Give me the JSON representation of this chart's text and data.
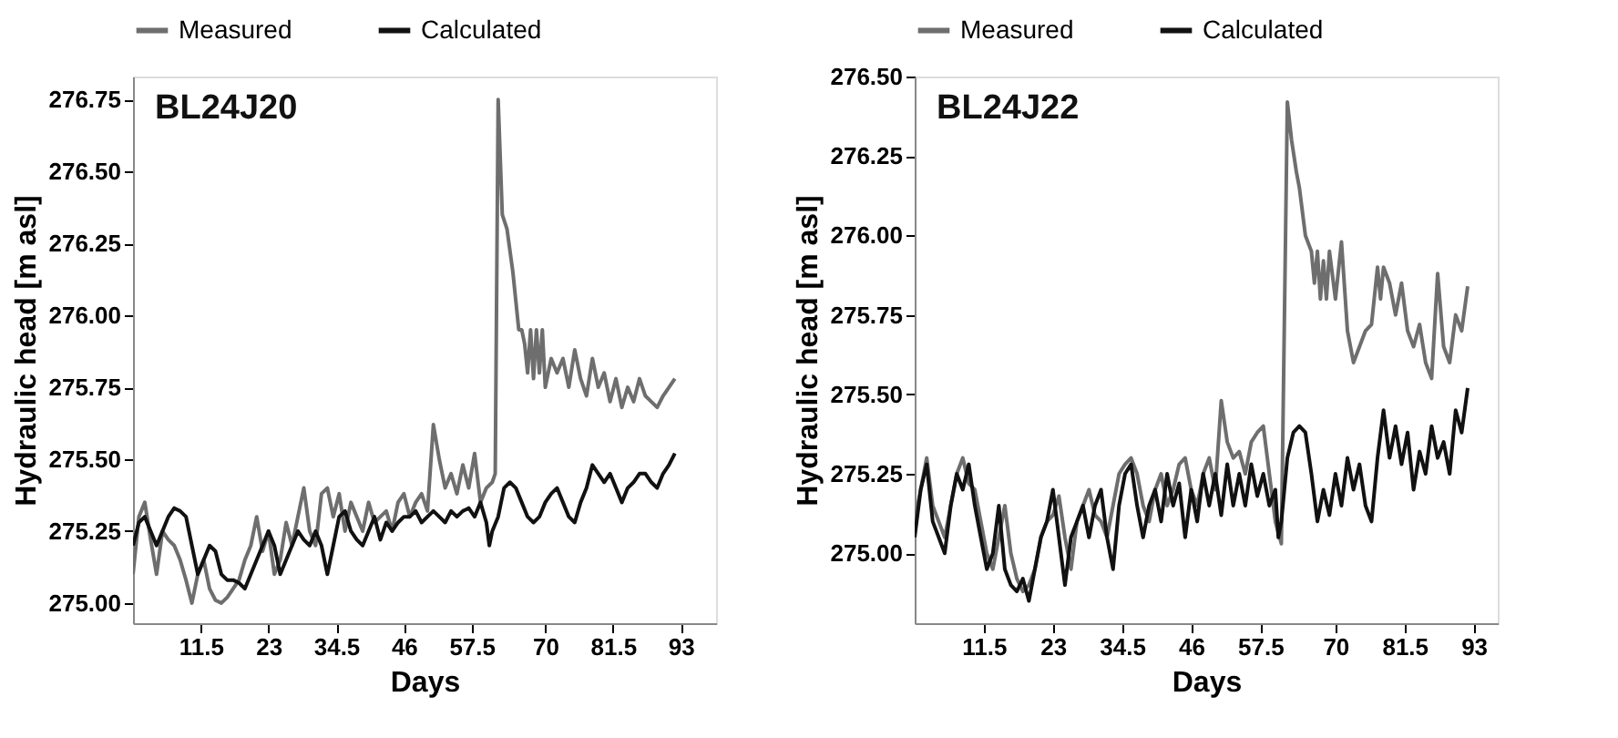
{
  "chart_data": [
    {
      "type": "line",
      "title": "BL24J20",
      "xlabel": "Days",
      "ylabel": "Hydraulic head [m asl]",
      "xlim": [
        0,
        99
      ],
      "ylim": [
        274.93,
        276.83
      ],
      "xticks": [
        11.5,
        23,
        34.5,
        46,
        57.5,
        70,
        81.5,
        93
      ],
      "yticks": [
        {
          "value": 275.0,
          "label": "275.00"
        },
        275.25,
        {
          "value": 275.5,
          "label": "275.50"
        },
        275.75,
        {
          "value": 276.0,
          "label": "276.00"
        },
        276.25,
        {
          "value": 276.5,
          "label": "276.50"
        },
        276.75
      ],
      "legend": "top",
      "grid": false,
      "series": [
        {
          "name": "Measured",
          "color": "#6e6e6e",
          "x": [
            0,
            1,
            2,
            3,
            4,
            5,
            6,
            7,
            8,
            9,
            10,
            11,
            12,
            13,
            14,
            15,
            16,
            17,
            18,
            19,
            20,
            21,
            22,
            23,
            24,
            25,
            26,
            27,
            28,
            29,
            30,
            31,
            32,
            33,
            34,
            35,
            36,
            37,
            38,
            39,
            40,
            41,
            42,
            43,
            44,
            45,
            46,
            47,
            48,
            49,
            50,
            51,
            52,
            53,
            54,
            55,
            56,
            57,
            58,
            59,
            60,
            61,
            61.5,
            62,
            62.7,
            63.5,
            64.5,
            65.5,
            66,
            66.5,
            67,
            67.5,
            68,
            68.5,
            69,
            69.5,
            70,
            71,
            72,
            73,
            74,
            75,
            76,
            77,
            78,
            79,
            80,
            81,
            82,
            83,
            84,
            85,
            86,
            87,
            88,
            89,
            90,
            91,
            92
          ],
          "values": [
            275.1,
            275.3,
            275.35,
            275.22,
            275.1,
            275.25,
            275.22,
            275.2,
            275.15,
            275.08,
            275.0,
            275.1,
            275.15,
            275.05,
            275.01,
            275.0,
            275.02,
            275.05,
            275.08,
            275.15,
            275.2,
            275.3,
            275.18,
            275.25,
            275.1,
            275.15,
            275.28,
            275.2,
            275.3,
            275.4,
            275.25,
            275.2,
            275.38,
            275.4,
            275.3,
            275.38,
            275.25,
            275.35,
            275.3,
            275.25,
            275.35,
            275.28,
            275.3,
            275.32,
            275.25,
            275.35,
            275.38,
            275.3,
            275.35,
            275.38,
            275.32,
            275.62,
            275.5,
            275.4,
            275.45,
            275.38,
            275.48,
            275.4,
            275.52,
            275.35,
            275.4,
            275.42,
            275.45,
            276.75,
            276.35,
            276.3,
            276.15,
            275.95,
            275.95,
            275.9,
            275.8,
            275.95,
            275.78,
            275.95,
            275.8,
            275.95,
            275.75,
            275.85,
            275.8,
            275.85,
            275.75,
            275.88,
            275.78,
            275.72,
            275.85,
            275.75,
            275.8,
            275.7,
            275.78,
            275.68,
            275.75,
            275.7,
            275.78,
            275.72,
            275.7,
            275.68,
            275.72,
            275.75,
            275.78
          ]
        },
        {
          "name": "Calculated",
          "color": "#111111",
          "x": [
            0,
            1,
            2,
            3,
            4,
            5,
            6,
            7,
            8,
            9,
            10,
            11,
            12,
            13,
            14,
            15,
            16,
            17,
            18,
            19,
            20,
            21,
            22,
            23,
            24,
            25,
            26,
            27,
            28,
            29,
            30,
            31,
            32,
            33,
            34,
            35,
            36,
            37,
            38,
            39,
            40,
            41,
            42,
            43,
            44,
            45,
            46,
            47,
            48,
            49,
            50,
            51,
            52,
            53,
            54,
            55,
            56,
            57,
            58,
            59,
            60,
            60.5,
            61,
            62,
            63,
            64,
            65,
            66,
            67,
            68,
            69,
            70,
            71,
            72,
            73,
            74,
            75,
            76,
            77,
            78,
            79,
            80,
            81,
            82,
            83,
            84,
            85,
            86,
            87,
            88,
            89,
            90,
            91,
            92
          ],
          "values": [
            275.2,
            275.28,
            275.3,
            275.25,
            275.2,
            275.25,
            275.3,
            275.33,
            275.32,
            275.3,
            275.2,
            275.1,
            275.15,
            275.2,
            275.18,
            275.1,
            275.08,
            275.08,
            275.07,
            275.05,
            275.1,
            275.15,
            275.2,
            275.25,
            275.2,
            275.1,
            275.15,
            275.2,
            275.25,
            275.22,
            275.2,
            275.25,
            275.2,
            275.1,
            275.2,
            275.3,
            275.32,
            275.25,
            275.22,
            275.2,
            275.25,
            275.3,
            275.22,
            275.28,
            275.25,
            275.28,
            275.3,
            275.3,
            275.32,
            275.28,
            275.3,
            275.32,
            275.3,
            275.28,
            275.32,
            275.3,
            275.32,
            275.33,
            275.3,
            275.35,
            275.28,
            275.2,
            275.25,
            275.3,
            275.4,
            275.42,
            275.4,
            275.35,
            275.3,
            275.28,
            275.3,
            275.35,
            275.38,
            275.4,
            275.35,
            275.3,
            275.28,
            275.35,
            275.4,
            275.48,
            275.45,
            275.42,
            275.45,
            275.4,
            275.35,
            275.4,
            275.42,
            275.45,
            275.45,
            275.42,
            275.4,
            275.45,
            275.48,
            275.52
          ]
        }
      ]
    },
    {
      "type": "line",
      "title": "BL24J22",
      "xlabel": "Days",
      "ylabel": "Hydraulic head [m asl]",
      "xlim": [
        0,
        97
      ],
      "ylim": [
        274.78,
        276.5
      ],
      "xticks": [
        11.5,
        23,
        34.5,
        46,
        57.5,
        70,
        81.5,
        93
      ],
      "yticks": [
        {
          "value": 275.0,
          "label": "275.00"
        },
        275.25,
        {
          "value": 275.5,
          "label": "275.50"
        },
        275.75,
        {
          "value": 276.0,
          "label": "276.00"
        },
        276.25,
        {
          "value": 276.5,
          "label": "276.50"
        }
      ],
      "legend": "top",
      "grid": false,
      "series": [
        {
          "name": "Measured",
          "color": "#6e6e6e",
          "x": [
            0,
            1,
            2,
            3,
            4,
            5,
            6,
            7,
            8,
            9,
            10,
            11,
            12,
            13,
            14,
            15,
            16,
            17,
            18,
            19,
            20,
            21,
            22,
            23,
            24,
            25,
            26,
            27,
            28,
            29,
            30,
            31,
            32,
            33,
            34,
            35,
            36,
            37,
            38,
            39,
            40,
            41,
            42,
            43,
            44,
            45,
            46,
            47,
            48,
            49,
            50,
            51,
            52,
            53,
            54,
            55,
            56,
            57,
            58,
            59,
            60,
            61,
            62,
            62.7,
            63.5,
            64,
            65,
            66,
            66.5,
            67,
            67.5,
            68,
            68.5,
            69,
            70,
            71,
            72,
            73,
            74,
            75,
            76,
            77,
            77.5,
            78,
            79,
            80,
            81,
            82,
            83,
            84,
            85,
            86,
            87,
            88,
            89,
            90,
            91,
            92
          ],
          "values": [
            275.1,
            275.2,
            275.3,
            275.15,
            275.1,
            275.05,
            275.15,
            275.25,
            275.3,
            275.22,
            275.2,
            275.1,
            275.0,
            274.95,
            275.05,
            275.15,
            275.0,
            274.92,
            274.88,
            274.9,
            274.95,
            275.05,
            275.1,
            275.12,
            275.18,
            275.05,
            274.95,
            275.1,
            275.15,
            275.2,
            275.12,
            275.1,
            275.05,
            275.15,
            275.25,
            275.28,
            275.3,
            275.25,
            275.15,
            275.1,
            275.2,
            275.25,
            275.15,
            275.2,
            275.28,
            275.3,
            275.2,
            275.15,
            275.25,
            275.3,
            275.2,
            275.48,
            275.35,
            275.3,
            275.32,
            275.25,
            275.35,
            275.38,
            275.4,
            275.25,
            275.1,
            275.03,
            276.42,
            276.3,
            276.2,
            276.15,
            276.0,
            275.95,
            275.85,
            275.95,
            275.8,
            275.92,
            275.8,
            275.95,
            275.8,
            275.98,
            275.7,
            275.6,
            275.65,
            275.7,
            275.72,
            275.9,
            275.8,
            275.9,
            275.85,
            275.75,
            275.85,
            275.7,
            275.65,
            275.72,
            275.6,
            275.55,
            275.88,
            275.65,
            275.6,
            275.75,
            275.7,
            275.84
          ]
        },
        {
          "name": "Calculated",
          "color": "#111111",
          "x": [
            0,
            1,
            2,
            3,
            4,
            5,
            6,
            7,
            8,
            9,
            10,
            11,
            12,
            13,
            14,
            15,
            16,
            17,
            18,
            19,
            20,
            21,
            22,
            23,
            24,
            25,
            26,
            27,
            28,
            29,
            30,
            31,
            32,
            33,
            34,
            35,
            36,
            37,
            38,
            39,
            40,
            41,
            42,
            43,
            44,
            45,
            46,
            47,
            48,
            49,
            50,
            51,
            52,
            53,
            54,
            55,
            56,
            57,
            58,
            59,
            60,
            60.5,
            61,
            62,
            63,
            64,
            65,
            66,
            67,
            68,
            69,
            70,
            71,
            72,
            73,
            74,
            75,
            76,
            77,
            78,
            79,
            80,
            81,
            82,
            83,
            84,
            85,
            86,
            87,
            88,
            89,
            90,
            91,
            92
          ],
          "values": [
            275.05,
            275.2,
            275.28,
            275.1,
            275.05,
            275.0,
            275.15,
            275.25,
            275.2,
            275.28,
            275.15,
            275.05,
            274.95,
            275.0,
            275.15,
            274.95,
            274.9,
            274.88,
            274.92,
            274.85,
            274.95,
            275.05,
            275.1,
            275.2,
            275.05,
            274.9,
            275.05,
            275.1,
            275.15,
            275.05,
            275.15,
            275.2,
            275.05,
            274.95,
            275.15,
            275.25,
            275.28,
            275.15,
            275.05,
            275.15,
            275.2,
            275.1,
            275.25,
            275.15,
            275.22,
            275.05,
            275.2,
            275.1,
            275.25,
            275.15,
            275.25,
            275.12,
            275.28,
            275.15,
            275.25,
            275.15,
            275.28,
            275.18,
            275.25,
            275.15,
            275.2,
            275.05,
            275.1,
            275.3,
            275.38,
            275.4,
            275.38,
            275.25,
            275.1,
            275.2,
            275.12,
            275.25,
            275.15,
            275.3,
            275.2,
            275.28,
            275.15,
            275.1,
            275.3,
            275.45,
            275.3,
            275.4,
            275.28,
            275.38,
            275.2,
            275.32,
            275.25,
            275.4,
            275.3,
            275.35,
            275.25,
            275.45,
            275.38,
            275.52
          ]
        }
      ]
    }
  ]
}
